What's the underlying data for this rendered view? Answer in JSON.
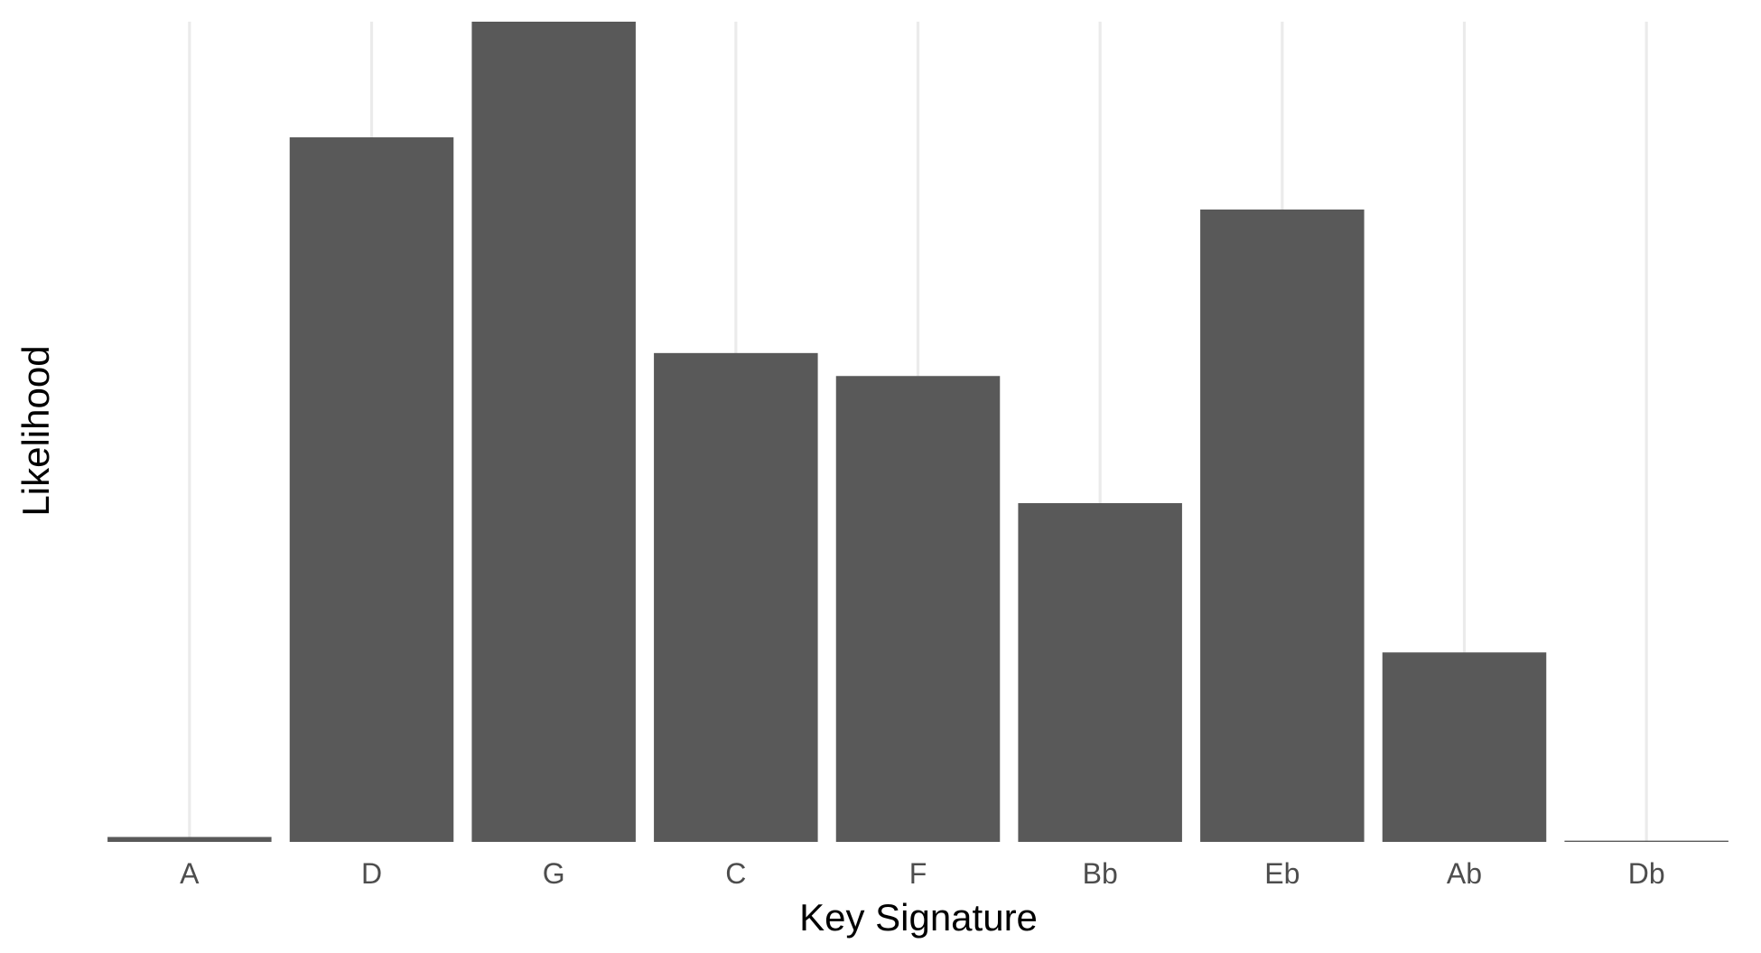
{
  "chart_data": {
    "type": "bar",
    "title": "",
    "xlabel": "Key Signature",
    "ylabel": "Likelihood",
    "categories": [
      "A",
      "D",
      "G",
      "C",
      "F",
      "Bb",
      "Eb",
      "Ab",
      "Db"
    ],
    "values": [
      0.006,
      0.859,
      1.0,
      0.596,
      0.568,
      0.413,
      0.771,
      0.231,
      0.0015
    ],
    "ylim": [
      0,
      1
    ],
    "y_tick_labels_shown": false,
    "grid": "vertical major gridlines only",
    "legend": "none",
    "bar_color": "#595959",
    "grid_color": "#ebebeb",
    "background_color": "#ffffff"
  }
}
